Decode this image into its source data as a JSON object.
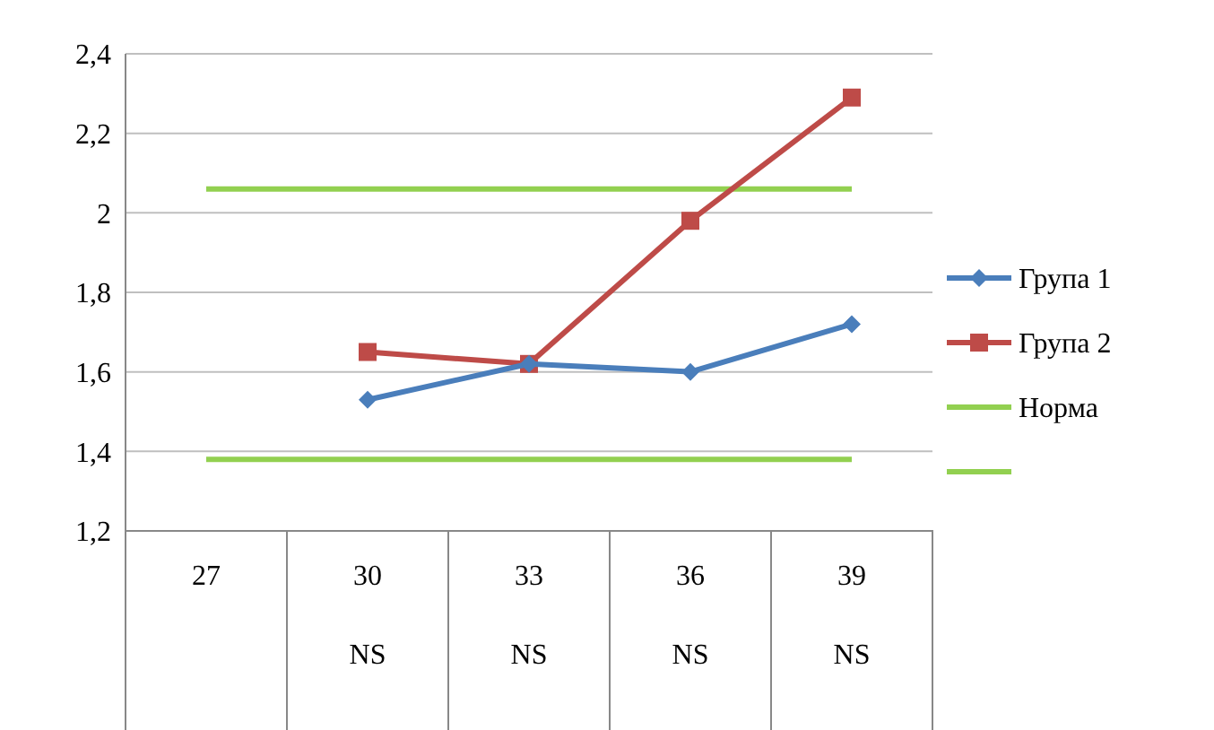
{
  "chart_data": {
    "type": "line",
    "categories": [
      "27",
      "30\nNS",
      "33\nNS",
      "36\nNS",
      "39\nNS"
    ],
    "series": [
      {
        "name": "Група 1",
        "color": "#4a7ebb",
        "marker": "diamond",
        "values": [
          null,
          1.53,
          1.62,
          1.6,
          1.72
        ]
      },
      {
        "name": "Група 2",
        "color": "#be4b48",
        "marker": "square",
        "values": [
          null,
          1.65,
          1.62,
          1.98,
          2.29
        ]
      },
      {
        "name": "Норма",
        "color": "#92d050",
        "marker": "none",
        "values": [
          2.06,
          2.06,
          2.06,
          2.06,
          2.06
        ]
      },
      {
        "color": "#92d050",
        "marker": "none",
        "values": [
          1.38,
          1.38,
          1.38,
          1.38,
          1.38
        ]
      }
    ],
    "ylim": [
      1.2,
      2.4
    ],
    "yticks": [
      {
        "value": 1.2,
        "label": "1,2"
      },
      {
        "value": 1.4,
        "label": "1,4"
      },
      {
        "value": 1.6,
        "label": "1,6"
      },
      {
        "value": 1.8,
        "label": "1,8"
      },
      {
        "value": 2,
        "label": "2"
      },
      {
        "value": 2.2,
        "label": "2,2"
      },
      {
        "value": 2.4,
        "label": "2,4"
      }
    ],
    "grid": "y",
    "legend": "right"
  }
}
